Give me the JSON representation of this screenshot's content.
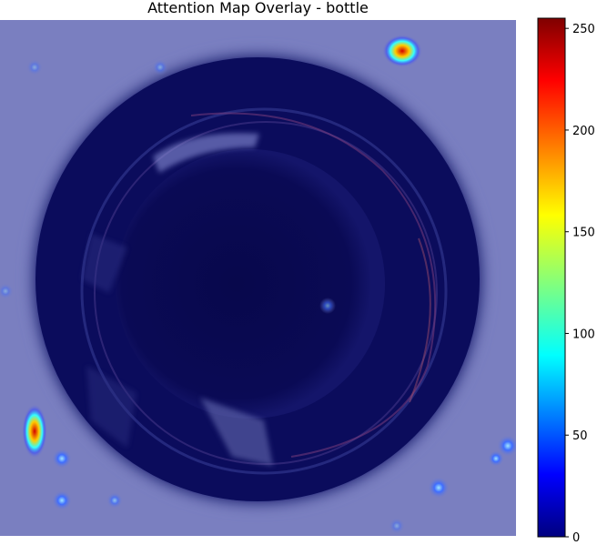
{
  "figure": {
    "title": "Attention Map Overlay - bottle"
  },
  "colorbar": {
    "colormap": "jet",
    "range": [
      0,
      255
    ],
    "ticks": [
      "0",
      "50",
      "100",
      "150",
      "200",
      "250"
    ],
    "tick_values": [
      0,
      50,
      100,
      150,
      200,
      250
    ],
    "stops": [
      "#00007f",
      "#0000ff",
      "#00ffff",
      "#ffff00",
      "#ff0000",
      "#7f0000"
    ]
  },
  "image": {
    "subject": "top-down view of bottle mouth",
    "overlay_color": "#7a7fc0"
  }
}
